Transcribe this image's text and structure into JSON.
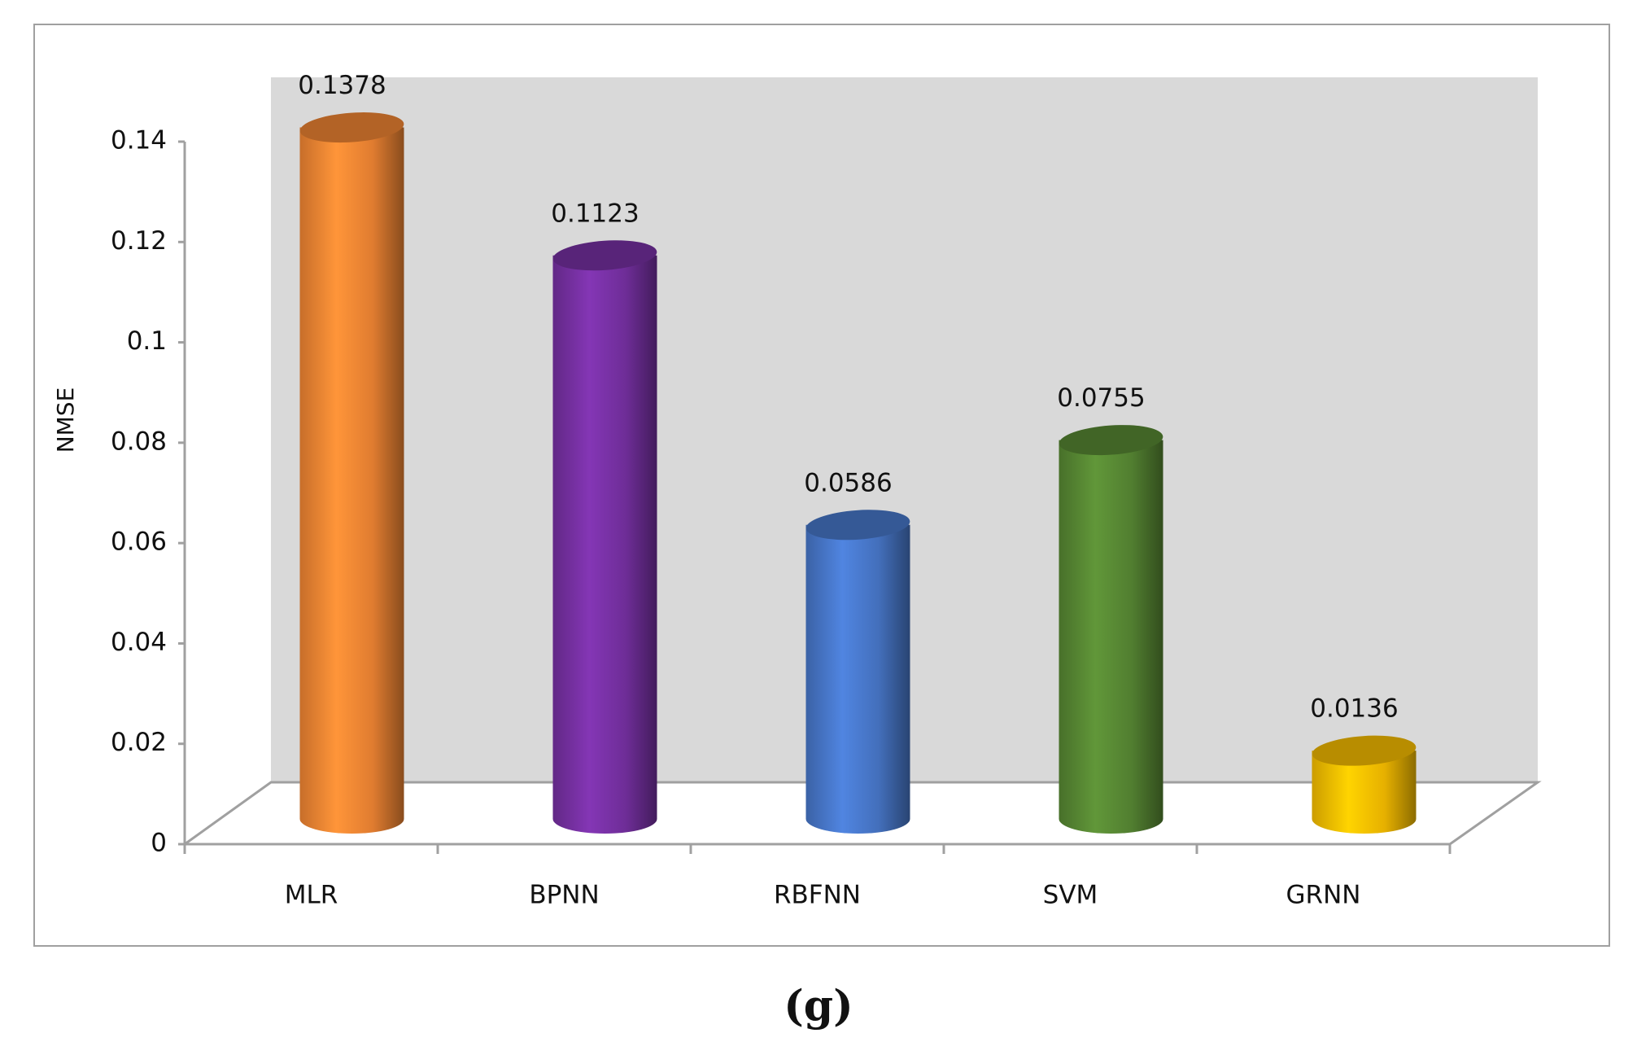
{
  "chart_data": {
    "type": "bar",
    "caption": "(g)",
    "y_label": "NMSE",
    "categories": [
      "MLR",
      "BPNN",
      "RBFNN",
      "SVM",
      "GRNN"
    ],
    "values": [
      0.1378,
      0.1123,
      0.0586,
      0.0755,
      0.0136
    ],
    "colors": [
      "#f98a35",
      "#7a32a8",
      "#4a7bd0",
      "#5a8c35",
      "#ffc400"
    ],
    "ylim": [
      0,
      0.14
    ],
    "yticks": [
      0,
      0.02,
      0.04,
      0.06,
      0.08,
      0.1,
      0.12,
      0.14
    ]
  }
}
